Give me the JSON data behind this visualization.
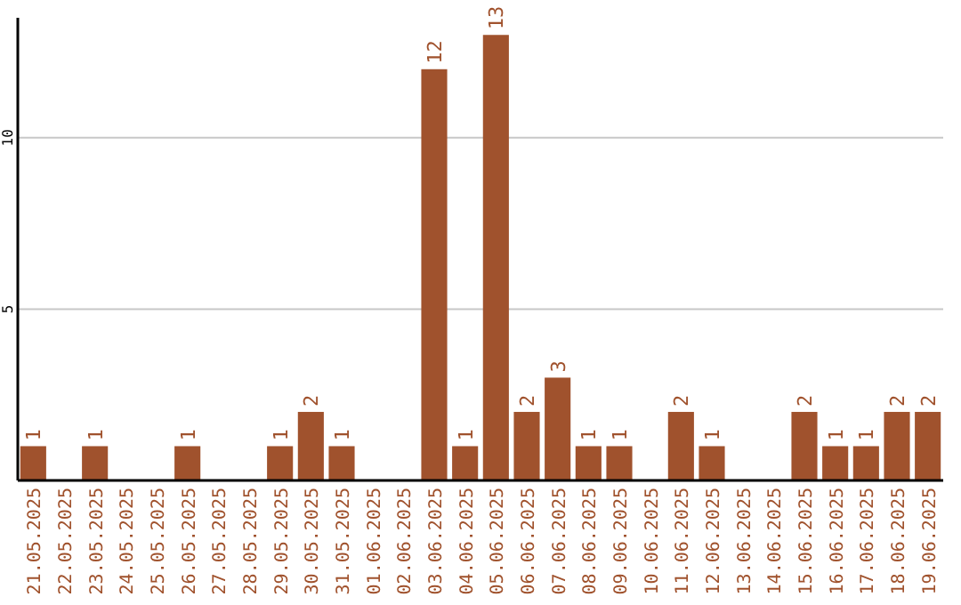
{
  "chart_data": {
    "type": "bar",
    "categories": [
      "21.05.2025",
      "22.05.2025",
      "23.05.2025",
      "24.05.2025",
      "25.05.2025",
      "26.05.2025",
      "27.05.2025",
      "28.05.2025",
      "29.05.2025",
      "30.05.2025",
      "31.05.2025",
      "01.06.2025",
      "02.06.2025",
      "03.06.2025",
      "04.06.2025",
      "05.06.2025",
      "06.06.2025",
      "07.06.2025",
      "08.06.2025",
      "09.06.2025",
      "10.06.2025",
      "11.06.2025",
      "12.06.2025",
      "13.06.2025",
      "14.06.2025",
      "15.06.2025",
      "16.06.2025",
      "17.06.2025",
      "18.06.2025",
      "19.06.2025"
    ],
    "values": [
      1,
      0,
      1,
      0,
      0,
      1,
      0,
      0,
      1,
      2,
      1,
      0,
      0,
      12,
      1,
      13,
      2,
      3,
      1,
      1,
      0,
      2,
      1,
      0,
      0,
      2,
      1,
      1,
      2,
      2
    ],
    "value_labels": [
      "1",
      null,
      "1",
      null,
      null,
      "1",
      null,
      null,
      "1",
      "2",
      "1",
      null,
      null,
      "12",
      "1",
      "13",
      "2",
      "3",
      "1",
      "1",
      null,
      "2",
      "1",
      null,
      null,
      "2",
      "1",
      "1",
      "2",
      "2"
    ],
    "color": "#a0522d",
    "ylim": [
      0,
      13.5
    ],
    "yticks": [
      5,
      10
    ],
    "grid": "y"
  }
}
